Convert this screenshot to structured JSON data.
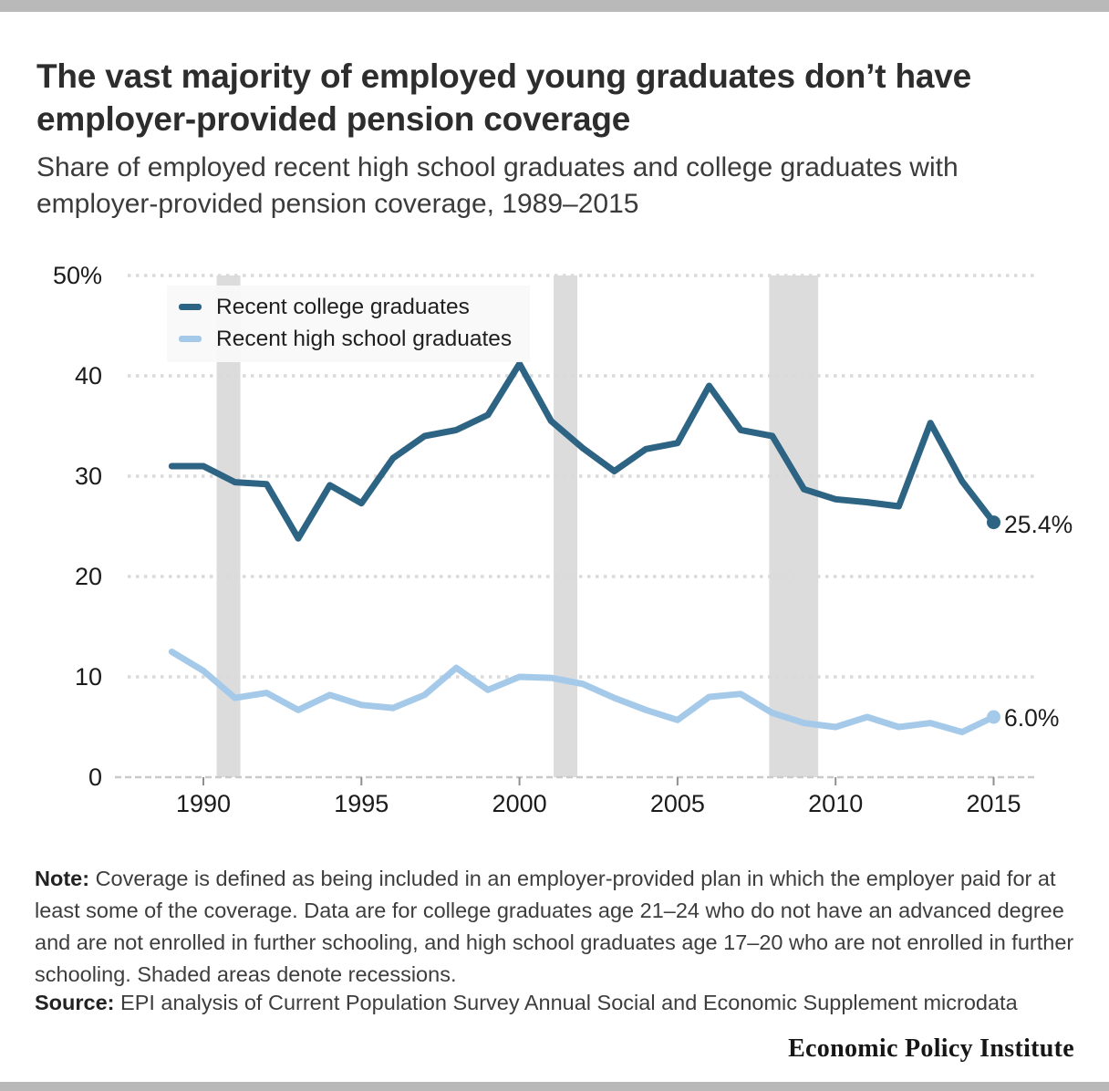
{
  "page": {
    "title": "The vast majority of employed young graduates don’t have employer-provided pension coverage",
    "subtitle": "Share of employed recent high school graduates and college graduates with employer-provided pension coverage, 1989–2015",
    "note_label": "Note:",
    "note_text": " Coverage is defined as being included in an employer-provided plan in which the employer paid for at least some of the coverage. Data are for college graduates age 21–24 who do not have an advanced degree and are not enrolled in further schooling, and high school graduates age 17–20 who are not enrolled in further schooling. Shaded areas denote recessions.",
    "source_label": "Source:",
    "source_text": " EPI analysis of Current Population Survey Annual Social and Economic Supplement microdata",
    "branding": "Economic Policy Institute"
  },
  "chart_data": {
    "type": "line",
    "title": "The vast majority of employed young graduates don’t have employer-provided pension coverage",
    "subtitle": "Share of employed recent high school graduates and college graduates with employer-provided pension coverage, 1989–2015",
    "x": [
      1989,
      1990,
      1991,
      1992,
      1993,
      1994,
      1995,
      1996,
      1997,
      1998,
      1999,
      2000,
      2001,
      2002,
      2003,
      2004,
      2005,
      2006,
      2007,
      2008,
      2009,
      2010,
      2011,
      2012,
      2013,
      2014,
      2015
    ],
    "series": [
      {
        "name": "Recent college graduates",
        "color": "#2d6484",
        "end_label": "25.4%",
        "values": [
          31.0,
          31.0,
          29.4,
          29.2,
          23.8,
          29.1,
          27.3,
          31.8,
          34.0,
          34.6,
          36.1,
          41.2,
          35.5,
          32.8,
          30.5,
          32.7,
          33.3,
          39.0,
          34.6,
          34.0,
          28.7,
          27.7,
          27.4,
          27.0,
          35.3,
          29.5,
          25.4
        ]
      },
      {
        "name": "Recent high school graduates",
        "color": "#a5cae9",
        "end_label": "6.0%",
        "values": [
          12.5,
          10.6,
          7.9,
          8.4,
          6.7,
          8.2,
          7.2,
          6.9,
          8.2,
          10.9,
          8.7,
          10.0,
          9.9,
          9.3,
          7.9,
          6.7,
          5.7,
          8.0,
          8.3,
          6.4,
          5.4,
          5.0,
          6.0,
          5.0,
          5.4,
          4.5,
          6.0
        ]
      }
    ],
    "ylim": [
      0,
      50
    ],
    "yticks": [
      0,
      10,
      20,
      30,
      40,
      50
    ],
    "ytick_labels": [
      "0",
      "10",
      "20",
      "30",
      "40",
      "50%"
    ],
    "xticks": [
      1990,
      1995,
      2000,
      2005,
      2010,
      2015
    ],
    "xtick_labels": [
      "1990",
      "1995",
      "2000",
      "2005",
      "2010",
      "2015"
    ],
    "recessions": [
      [
        1990.42,
        1991.17
      ],
      [
        2001.08,
        2001.83
      ],
      [
        2007.9,
        2009.45
      ]
    ],
    "grid": "horizontal-dotted",
    "legend_position": "top-left",
    "colors": {
      "recession_band": "#dcdcdc",
      "gridline": "#dadada",
      "baseline": "#c9c9c9",
      "tick": "#8f8f8f",
      "axis_text": "#1b1b1b"
    }
  }
}
